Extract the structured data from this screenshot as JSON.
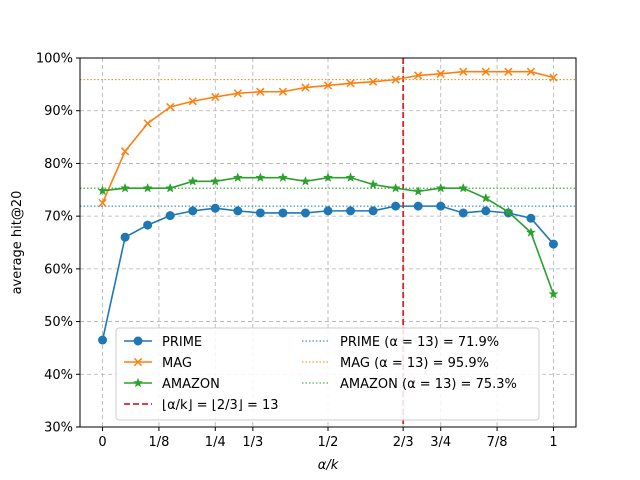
{
  "chart_data": {
    "type": "line",
    "xlabel": "α/k",
    "ylabel": "average hit@20",
    "xlim": [
      -0.05,
      1.05
    ],
    "ylim": [
      30,
      100
    ],
    "x_ticks": [
      {
        "value": 0,
        "label": "0"
      },
      {
        "value": 0.125,
        "label": "1/8"
      },
      {
        "value": 0.25,
        "label": "1/4"
      },
      {
        "value": 0.3333,
        "label": "1/3"
      },
      {
        "value": 0.5,
        "label": "1/2"
      },
      {
        "value": 0.6667,
        "label": "2/3"
      },
      {
        "value": 0.75,
        "label": "3/4"
      },
      {
        "value": 0.875,
        "label": "7/8"
      },
      {
        "value": 1,
        "label": "1"
      }
    ],
    "y_ticks": [
      {
        "value": 30,
        "label": "30%"
      },
      {
        "value": 40,
        "label": "40%"
      },
      {
        "value": 50,
        "label": "50%"
      },
      {
        "value": 60,
        "label": "60%"
      },
      {
        "value": 70,
        "label": "70%"
      },
      {
        "value": 80,
        "label": "80%"
      },
      {
        "value": 90,
        "label": "90%"
      },
      {
        "value": 100,
        "label": "100%"
      }
    ],
    "grid": true,
    "x": [
      0,
      0.05,
      0.1,
      0.15,
      0.2,
      0.25,
      0.3,
      0.35,
      0.4,
      0.45,
      0.5,
      0.55,
      0.6,
      0.65,
      0.7,
      0.75,
      0.8,
      0.85,
      0.9,
      0.95,
      1.0
    ],
    "series": [
      {
        "name": "PRIME",
        "color": "#1f77b4",
        "marker": "circle",
        "values": [
          46.5,
          66.0,
          68.3,
          70.1,
          71.0,
          71.5,
          71.0,
          70.6,
          70.6,
          70.6,
          71.0,
          71.0,
          71.0,
          71.9,
          71.9,
          71.9,
          70.6,
          71.0,
          70.6,
          69.6,
          64.7
        ]
      },
      {
        "name": "MAG",
        "color": "#ff7f0e",
        "marker": "x",
        "values": [
          72.5,
          82.3,
          87.6,
          90.7,
          91.8,
          92.6,
          93.3,
          93.6,
          93.6,
          94.4,
          94.8,
          95.2,
          95.5,
          95.9,
          96.7,
          97.0,
          97.4,
          97.4,
          97.4,
          97.4,
          96.3
        ]
      },
      {
        "name": "AMAZON",
        "color": "#2ca02c",
        "marker": "star",
        "values": [
          74.8,
          75.3,
          75.3,
          75.3,
          76.6,
          76.6,
          77.3,
          77.3,
          77.3,
          76.6,
          77.3,
          77.3,
          76.0,
          75.3,
          74.7,
          75.3,
          75.3,
          73.4,
          70.8,
          66.9,
          55.2
        ]
      }
    ],
    "reference_lines": [
      {
        "name": "⌊α/k⌋ = ⌊2/3⌋ = 13",
        "orientation": "vertical",
        "value": 0.6667,
        "color": "#d62728",
        "style": "dashed"
      },
      {
        "name": "PRIME (α = 13) = 71.9%",
        "orientation": "horizontal",
        "value": 71.9,
        "color": "#1f77b4",
        "style": "dotted"
      },
      {
        "name": "MAG (α = 13) = 95.9%",
        "orientation": "horizontal",
        "value": 95.9,
        "color": "#ff7f0e",
        "style": "dotted"
      },
      {
        "name": "AMAZON (α = 13) = 75.3%",
        "orientation": "horizontal",
        "value": 75.3,
        "color": "#2ca02c",
        "style": "dotted"
      }
    ],
    "legend_placement": "lower-center",
    "legend": [
      {
        "label": "PRIME",
        "kind": "series",
        "ref": 0
      },
      {
        "label": "MAG",
        "kind": "series",
        "ref": 1
      },
      {
        "label": "AMAZON",
        "kind": "series",
        "ref": 2
      },
      {
        "label": "⌊α/k⌋ = ⌊2/3⌋ = 13",
        "kind": "ref",
        "ref": 0
      },
      {
        "label": "PRIME (α = 13) = 71.9%",
        "kind": "ref",
        "ref": 1
      },
      {
        "label": "MAG (α = 13) = 95.9%",
        "kind": "ref",
        "ref": 2
      },
      {
        "label": "AMAZON (α = 13) = 75.3%",
        "kind": "ref",
        "ref": 3
      }
    ]
  }
}
